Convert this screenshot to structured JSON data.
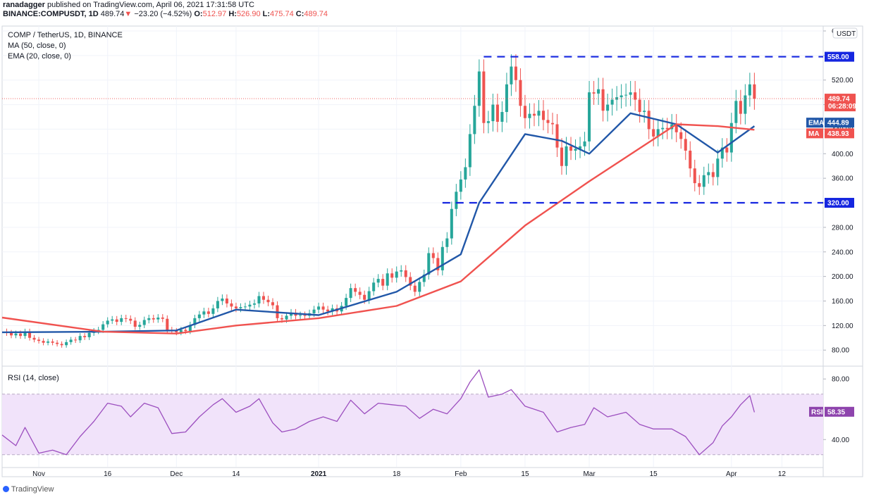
{
  "header": {
    "author": "ranadagger",
    "published": "published on TradingView.com, April 06, 2021 17:31:58 UTC",
    "symbol": "BINANCE:COMPUSDT, 1D",
    "price": "489.74",
    "arrow": "▼",
    "change": "−23.20 (−4.52%)",
    "o_label": "O:",
    "o_value": "512.97",
    "h_label": "H:",
    "h_value": "526.90",
    "l_label": "L:",
    "l_value": "475.74",
    "c_label": "C:",
    "c_value": "489.74"
  },
  "legend": {
    "title": "COMP / TetherUS, 1D, BINANCE",
    "ma": "MA (50, close, 0)",
    "ema": "EMA (20, close, 0)",
    "rsi": "RSI (14, close)"
  },
  "footer": {
    "brand": "TradingView"
  },
  "colors": {
    "up": "#26a69a",
    "down": "#ef5350",
    "ema": "#2157a8",
    "ma": "#f0524f",
    "level": "#1526e0",
    "rsi": "#9c4fbf",
    "rsi_band": "#f1e3fa"
  },
  "chart_data": {
    "type": "candlestick",
    "price_axis": {
      "ylim": [
        55,
        608
      ],
      "ticks": [
        "80.00",
        "120.00",
        "160.00",
        "200.00",
        "240.00",
        "280.00",
        "320.00",
        "360.00",
        "400.00",
        "440.00",
        "480.00",
        "520.00",
        "560.00",
        "600.00"
      ]
    },
    "currency": "USDT",
    "x_ticks": [
      {
        "label": "Nov",
        "date": "2020-11-01"
      },
      {
        "label": "16",
        "date": "2020-11-16"
      },
      {
        "label": "Dec",
        "date": "2020-12-01"
      },
      {
        "label": "14",
        "date": "2020-12-14"
      },
      {
        "label": "2021",
        "date": "2021-01-01"
      },
      {
        "label": "18",
        "date": "2021-01-18"
      },
      {
        "label": "Feb",
        "date": "2021-02-01"
      },
      {
        "label": "15",
        "date": "2021-02-15"
      },
      {
        "label": "Mar",
        "date": "2021-03-01"
      },
      {
        "label": "15",
        "date": "2021-03-15"
      },
      {
        "label": "Apr",
        "date": "2021-04-01"
      },
      {
        "label": "12",
        "date": "2021-04-12"
      }
    ],
    "x_range": [
      "2020-10-24",
      "2021-04-21"
    ],
    "key_levels": [
      {
        "value": 558,
        "label": "558.00",
        "from": "2021-02-06"
      },
      {
        "value": 320,
        "label": "320.00",
        "from": "2021-01-28"
      }
    ],
    "last_price": {
      "value": 489.74,
      "label": "489.74",
      "countdown": "06:28:09"
    },
    "indicator_tags": [
      {
        "name": "EMA",
        "value": 444.89,
        "label": "444.89"
      },
      {
        "name": "MA",
        "value": 438.93,
        "label": "438.93"
      }
    ],
    "closes": [
      {
        "date": "2020-10-25",
        "close": 108
      },
      {
        "date": "2020-10-26",
        "close": 104
      },
      {
        "date": "2020-10-27",
        "close": 107
      },
      {
        "date": "2020-10-28",
        "close": 103
      },
      {
        "date": "2020-10-29",
        "close": 110
      },
      {
        "date": "2020-10-30",
        "close": 100
      },
      {
        "date": "2020-10-31",
        "close": 97
      },
      {
        "date": "2020-11-01",
        "close": 95
      },
      {
        "date": "2020-11-02",
        "close": 92
      },
      {
        "date": "2020-11-03",
        "close": 94
      },
      {
        "date": "2020-11-04",
        "close": 92
      },
      {
        "date": "2020-11-05",
        "close": 90
      },
      {
        "date": "2020-11-06",
        "close": 88
      },
      {
        "date": "2020-11-07",
        "close": 93
      },
      {
        "date": "2020-11-08",
        "close": 97
      },
      {
        "date": "2020-11-09",
        "close": 96
      },
      {
        "date": "2020-11-10",
        "close": 103
      },
      {
        "date": "2020-11-11",
        "close": 101
      },
      {
        "date": "2020-11-12",
        "close": 108
      },
      {
        "date": "2020-11-13",
        "close": 111
      },
      {
        "date": "2020-11-14",
        "close": 113
      },
      {
        "date": "2020-11-15",
        "close": 122
      },
      {
        "date": "2020-11-16",
        "close": 128
      },
      {
        "date": "2020-11-17",
        "close": 130
      },
      {
        "date": "2020-11-18",
        "close": 126
      },
      {
        "date": "2020-11-19",
        "close": 132
      },
      {
        "date": "2020-11-20",
        "close": 131
      },
      {
        "date": "2020-11-21",
        "close": 128
      },
      {
        "date": "2020-11-22",
        "close": 118
      },
      {
        "date": "2020-11-23",
        "close": 121
      },
      {
        "date": "2020-11-24",
        "close": 129
      },
      {
        "date": "2020-11-25",
        "close": 132
      },
      {
        "date": "2020-11-26",
        "close": 130
      },
      {
        "date": "2020-11-27",
        "close": 133
      },
      {
        "date": "2020-11-28",
        "close": 131
      },
      {
        "date": "2020-11-29",
        "close": 113
      },
      {
        "date": "2020-11-30",
        "close": 111
      },
      {
        "date": "2020-12-01",
        "close": 109
      },
      {
        "date": "2020-12-02",
        "close": 113
      },
      {
        "date": "2020-12-03",
        "close": 111
      },
      {
        "date": "2020-12-04",
        "close": 121
      },
      {
        "date": "2020-12-05",
        "close": 132
      },
      {
        "date": "2020-12-06",
        "close": 138
      },
      {
        "date": "2020-12-07",
        "close": 143
      },
      {
        "date": "2020-12-08",
        "close": 139
      },
      {
        "date": "2020-12-09",
        "close": 148
      },
      {
        "date": "2020-12-10",
        "close": 160
      },
      {
        "date": "2020-12-11",
        "close": 164
      },
      {
        "date": "2020-12-12",
        "close": 156
      },
      {
        "date": "2020-12-13",
        "close": 151
      },
      {
        "date": "2020-12-14",
        "close": 148
      },
      {
        "date": "2020-12-15",
        "close": 150
      },
      {
        "date": "2020-12-16",
        "close": 151
      },
      {
        "date": "2020-12-17",
        "close": 154
      },
      {
        "date": "2020-12-18",
        "close": 156
      },
      {
        "date": "2020-12-19",
        "close": 168
      },
      {
        "date": "2020-12-20",
        "close": 162
      },
      {
        "date": "2020-12-21",
        "close": 158
      },
      {
        "date": "2020-12-22",
        "close": 153
      },
      {
        "date": "2020-12-23",
        "close": 132
      },
      {
        "date": "2020-12-24",
        "close": 130
      },
      {
        "date": "2020-12-25",
        "close": 136
      },
      {
        "date": "2020-12-26",
        "close": 141
      },
      {
        "date": "2020-12-27",
        "close": 136
      },
      {
        "date": "2020-12-28",
        "close": 137
      },
      {
        "date": "2020-12-29",
        "close": 136
      },
      {
        "date": "2020-12-30",
        "close": 140
      },
      {
        "date": "2020-12-31",
        "close": 146
      },
      {
        "date": "2021-01-01",
        "close": 151
      },
      {
        "date": "2021-01-02",
        "close": 146
      },
      {
        "date": "2021-01-03",
        "close": 143
      },
      {
        "date": "2021-01-04",
        "close": 148
      },
      {
        "date": "2021-01-05",
        "close": 143
      },
      {
        "date": "2021-01-06",
        "close": 152
      },
      {
        "date": "2021-01-07",
        "close": 165
      },
      {
        "date": "2021-01-08",
        "close": 181
      },
      {
        "date": "2021-01-09",
        "close": 175
      },
      {
        "date": "2021-01-10",
        "close": 170
      },
      {
        "date": "2021-01-11",
        "close": 162
      },
      {
        "date": "2021-01-12",
        "close": 176
      },
      {
        "date": "2021-01-13",
        "close": 190
      },
      {
        "date": "2021-01-14",
        "close": 196
      },
      {
        "date": "2021-01-15",
        "close": 185
      },
      {
        "date": "2021-01-16",
        "close": 205
      },
      {
        "date": "2021-01-17",
        "close": 198
      },
      {
        "date": "2021-01-18",
        "close": 208
      },
      {
        "date": "2021-01-19",
        "close": 210
      },
      {
        "date": "2021-01-20",
        "close": 199
      },
      {
        "date": "2021-01-21",
        "close": 185
      },
      {
        "date": "2021-01-22",
        "close": 175
      },
      {
        "date": "2021-01-23",
        "close": 191
      },
      {
        "date": "2021-01-24",
        "close": 203
      },
      {
        "date": "2021-01-25",
        "close": 238
      },
      {
        "date": "2021-01-26",
        "close": 230
      },
      {
        "date": "2021-01-27",
        "close": 210
      },
      {
        "date": "2021-01-28",
        "close": 248
      },
      {
        "date": "2021-01-29",
        "close": 262
      },
      {
        "date": "2021-01-30",
        "close": 310
      },
      {
        "date": "2021-01-31",
        "close": 338
      },
      {
        "date": "2021-02-01",
        "close": 358
      },
      {
        "date": "2021-02-02",
        "close": 378
      },
      {
        "date": "2021-02-03",
        "close": 432
      },
      {
        "date": "2021-02-04",
        "close": 478
      },
      {
        "date": "2021-02-05",
        "close": 534
      },
      {
        "date": "2021-02-06",
        "close": 450
      },
      {
        "date": "2021-02-07",
        "close": 453
      },
      {
        "date": "2021-02-08",
        "close": 480
      },
      {
        "date": "2021-02-09",
        "close": 452
      },
      {
        "date": "2021-02-10",
        "close": 468
      },
      {
        "date": "2021-02-11",
        "close": 513
      },
      {
        "date": "2021-02-12",
        "close": 542
      },
      {
        "date": "2021-02-13",
        "close": 520
      },
      {
        "date": "2021-02-14",
        "close": 478
      },
      {
        "date": "2021-02-15",
        "close": 458
      },
      {
        "date": "2021-02-16",
        "close": 465
      },
      {
        "date": "2021-02-17",
        "close": 462
      },
      {
        "date": "2021-02-18",
        "close": 470
      },
      {
        "date": "2021-02-19",
        "close": 455
      },
      {
        "date": "2021-02-20",
        "close": 450
      },
      {
        "date": "2021-02-21",
        "close": 448
      },
      {
        "date": "2021-02-22",
        "close": 410
      },
      {
        "date": "2021-02-23",
        "close": 380
      },
      {
        "date": "2021-02-24",
        "close": 412
      },
      {
        "date": "2021-02-25",
        "close": 405
      },
      {
        "date": "2021-02-26",
        "close": 408
      },
      {
        "date": "2021-02-27",
        "close": 412
      },
      {
        "date": "2021-02-28",
        "close": 420
      },
      {
        "date": "2021-03-01",
        "close": 500
      },
      {
        "date": "2021-03-02",
        "close": 498
      },
      {
        "date": "2021-03-03",
        "close": 505
      },
      {
        "date": "2021-03-04",
        "close": 470
      },
      {
        "date": "2021-03-05",
        "close": 480
      },
      {
        "date": "2021-03-06",
        "close": 488
      },
      {
        "date": "2021-03-07",
        "close": 492
      },
      {
        "date": "2021-03-08",
        "close": 495
      },
      {
        "date": "2021-03-09",
        "close": 496
      },
      {
        "date": "2021-03-10",
        "close": 500
      },
      {
        "date": "2021-03-11",
        "close": 488
      },
      {
        "date": "2021-03-12",
        "close": 468
      },
      {
        "date": "2021-03-13",
        "close": 470
      },
      {
        "date": "2021-03-14",
        "close": 440
      },
      {
        "date": "2021-03-15",
        "close": 428
      },
      {
        "date": "2021-03-16",
        "close": 440
      },
      {
        "date": "2021-03-17",
        "close": 442
      },
      {
        "date": "2021-03-18",
        "close": 440
      },
      {
        "date": "2021-03-19",
        "close": 448
      },
      {
        "date": "2021-03-20",
        "close": 435
      },
      {
        "date": "2021-03-21",
        "close": 424
      },
      {
        "date": "2021-03-22",
        "close": 405
      },
      {
        "date": "2021-03-23",
        "close": 376
      },
      {
        "date": "2021-03-24",
        "close": 352
      },
      {
        "date": "2021-03-25",
        "close": 346
      },
      {
        "date": "2021-03-26",
        "close": 365
      },
      {
        "date": "2021-03-27",
        "close": 370
      },
      {
        "date": "2021-03-28",
        "close": 362
      },
      {
        "date": "2021-03-29",
        "close": 392
      },
      {
        "date": "2021-03-30",
        "close": 410
      },
      {
        "date": "2021-03-31",
        "close": 402
      },
      {
        "date": "2021-04-01",
        "close": 450
      },
      {
        "date": "2021-04-02",
        "close": 486
      },
      {
        "date": "2021-04-03",
        "close": 465
      },
      {
        "date": "2021-04-04",
        "close": 495
      },
      {
        "date": "2021-04-05",
        "close": 512.97
      },
      {
        "date": "2021-04-06",
        "close": 489.74
      }
    ],
    "series": [
      {
        "name": "EMA (20, close, 0)",
        "points": [
          [
            "2020-10-24",
            109
          ],
          [
            "2020-11-15",
            110
          ],
          [
            "2020-12-01",
            112
          ],
          [
            "2020-12-14",
            146
          ],
          [
            "2021-01-01",
            137
          ],
          [
            "2021-01-18",
            175
          ],
          [
            "2021-02-01",
            236
          ],
          [
            "2021-02-05",
            320
          ],
          [
            "2021-02-15",
            432
          ],
          [
            "2021-02-23",
            421
          ],
          [
            "2021-03-01",
            400
          ],
          [
            "2021-03-10",
            466
          ],
          [
            "2021-03-20",
            448
          ],
          [
            "2021-03-29",
            402
          ],
          [
            "2021-04-06",
            445
          ]
        ]
      },
      {
        "name": "MA (50, close, 0)",
        "points": [
          [
            "2020-10-24",
            133
          ],
          [
            "2020-11-15",
            110
          ],
          [
            "2020-12-01",
            107
          ],
          [
            "2020-12-14",
            120
          ],
          [
            "2021-01-01",
            132
          ],
          [
            "2021-01-18",
            152
          ],
          [
            "2021-02-01",
            192
          ],
          [
            "2021-02-15",
            283
          ],
          [
            "2021-03-01",
            355
          ],
          [
            "2021-03-20",
            448
          ],
          [
            "2021-03-29",
            445
          ],
          [
            "2021-04-06",
            439
          ]
        ]
      }
    ],
    "rsi": {
      "ylim": [
        22,
        88
      ],
      "ticks": [
        "40.00",
        "80.00"
      ],
      "band": [
        30,
        70
      ],
      "tag": {
        "name": "RSI",
        "value": 58.35,
        "label": "58.35"
      },
      "values": [
        [
          "2020-10-24",
          43
        ],
        [
          "2020-10-27",
          36
        ],
        [
          "2020-10-29",
          48
        ],
        [
          "2020-11-01",
          31
        ],
        [
          "2020-11-04",
          33
        ],
        [
          "2020-11-07",
          30
        ],
        [
          "2020-11-10",
          42
        ],
        [
          "2020-11-13",
          52
        ],
        [
          "2020-11-16",
          64
        ],
        [
          "2020-11-19",
          62
        ],
        [
          "2020-11-21",
          55
        ],
        [
          "2020-11-24",
          64
        ],
        [
          "2020-11-27",
          61
        ],
        [
          "2020-11-30",
          44
        ],
        [
          "2020-12-03",
          45
        ],
        [
          "2020-12-06",
          55
        ],
        [
          "2020-12-09",
          63
        ],
        [
          "2020-12-11",
          67
        ],
        [
          "2020-12-14",
          58
        ],
        [
          "2020-12-17",
          62
        ],
        [
          "2020-12-19",
          67
        ],
        [
          "2020-12-22",
          51
        ],
        [
          "2020-12-24",
          45
        ],
        [
          "2020-12-27",
          47
        ],
        [
          "2020-12-30",
          52
        ],
        [
          "2021-01-02",
          55
        ],
        [
          "2021-01-05",
          52
        ],
        [
          "2021-01-08",
          66
        ],
        [
          "2021-01-11",
          57
        ],
        [
          "2021-01-14",
          64
        ],
        [
          "2021-01-17",
          63
        ],
        [
          "2021-01-20",
          62
        ],
        [
          "2021-01-23",
          54
        ],
        [
          "2021-01-26",
          60
        ],
        [
          "2021-01-29",
          57
        ],
        [
          "2021-02-01",
          67
        ],
        [
          "2021-02-03",
          78
        ],
        [
          "2021-02-05",
          86
        ],
        [
          "2021-02-07",
          68
        ],
        [
          "2021-02-10",
          70
        ],
        [
          "2021-02-12",
          73
        ],
        [
          "2021-02-15",
          62
        ],
        [
          "2021-02-19",
          58
        ],
        [
          "2021-02-22",
          45
        ],
        [
          "2021-02-25",
          48
        ],
        [
          "2021-02-28",
          50
        ],
        [
          "2021-03-02",
          61
        ],
        [
          "2021-03-05",
          55
        ],
        [
          "2021-03-09",
          58
        ],
        [
          "2021-03-12",
          50
        ],
        [
          "2021-03-15",
          47
        ],
        [
          "2021-03-19",
          47
        ],
        [
          "2021-03-22",
          42
        ],
        [
          "2021-03-25",
          30
        ],
        [
          "2021-03-28",
          38
        ],
        [
          "2021-03-30",
          49
        ],
        [
          "2021-04-01",
          55
        ],
        [
          "2021-04-03",
          63
        ],
        [
          "2021-04-05",
          69
        ],
        [
          "2021-04-06",
          58
        ]
      ]
    }
  }
}
